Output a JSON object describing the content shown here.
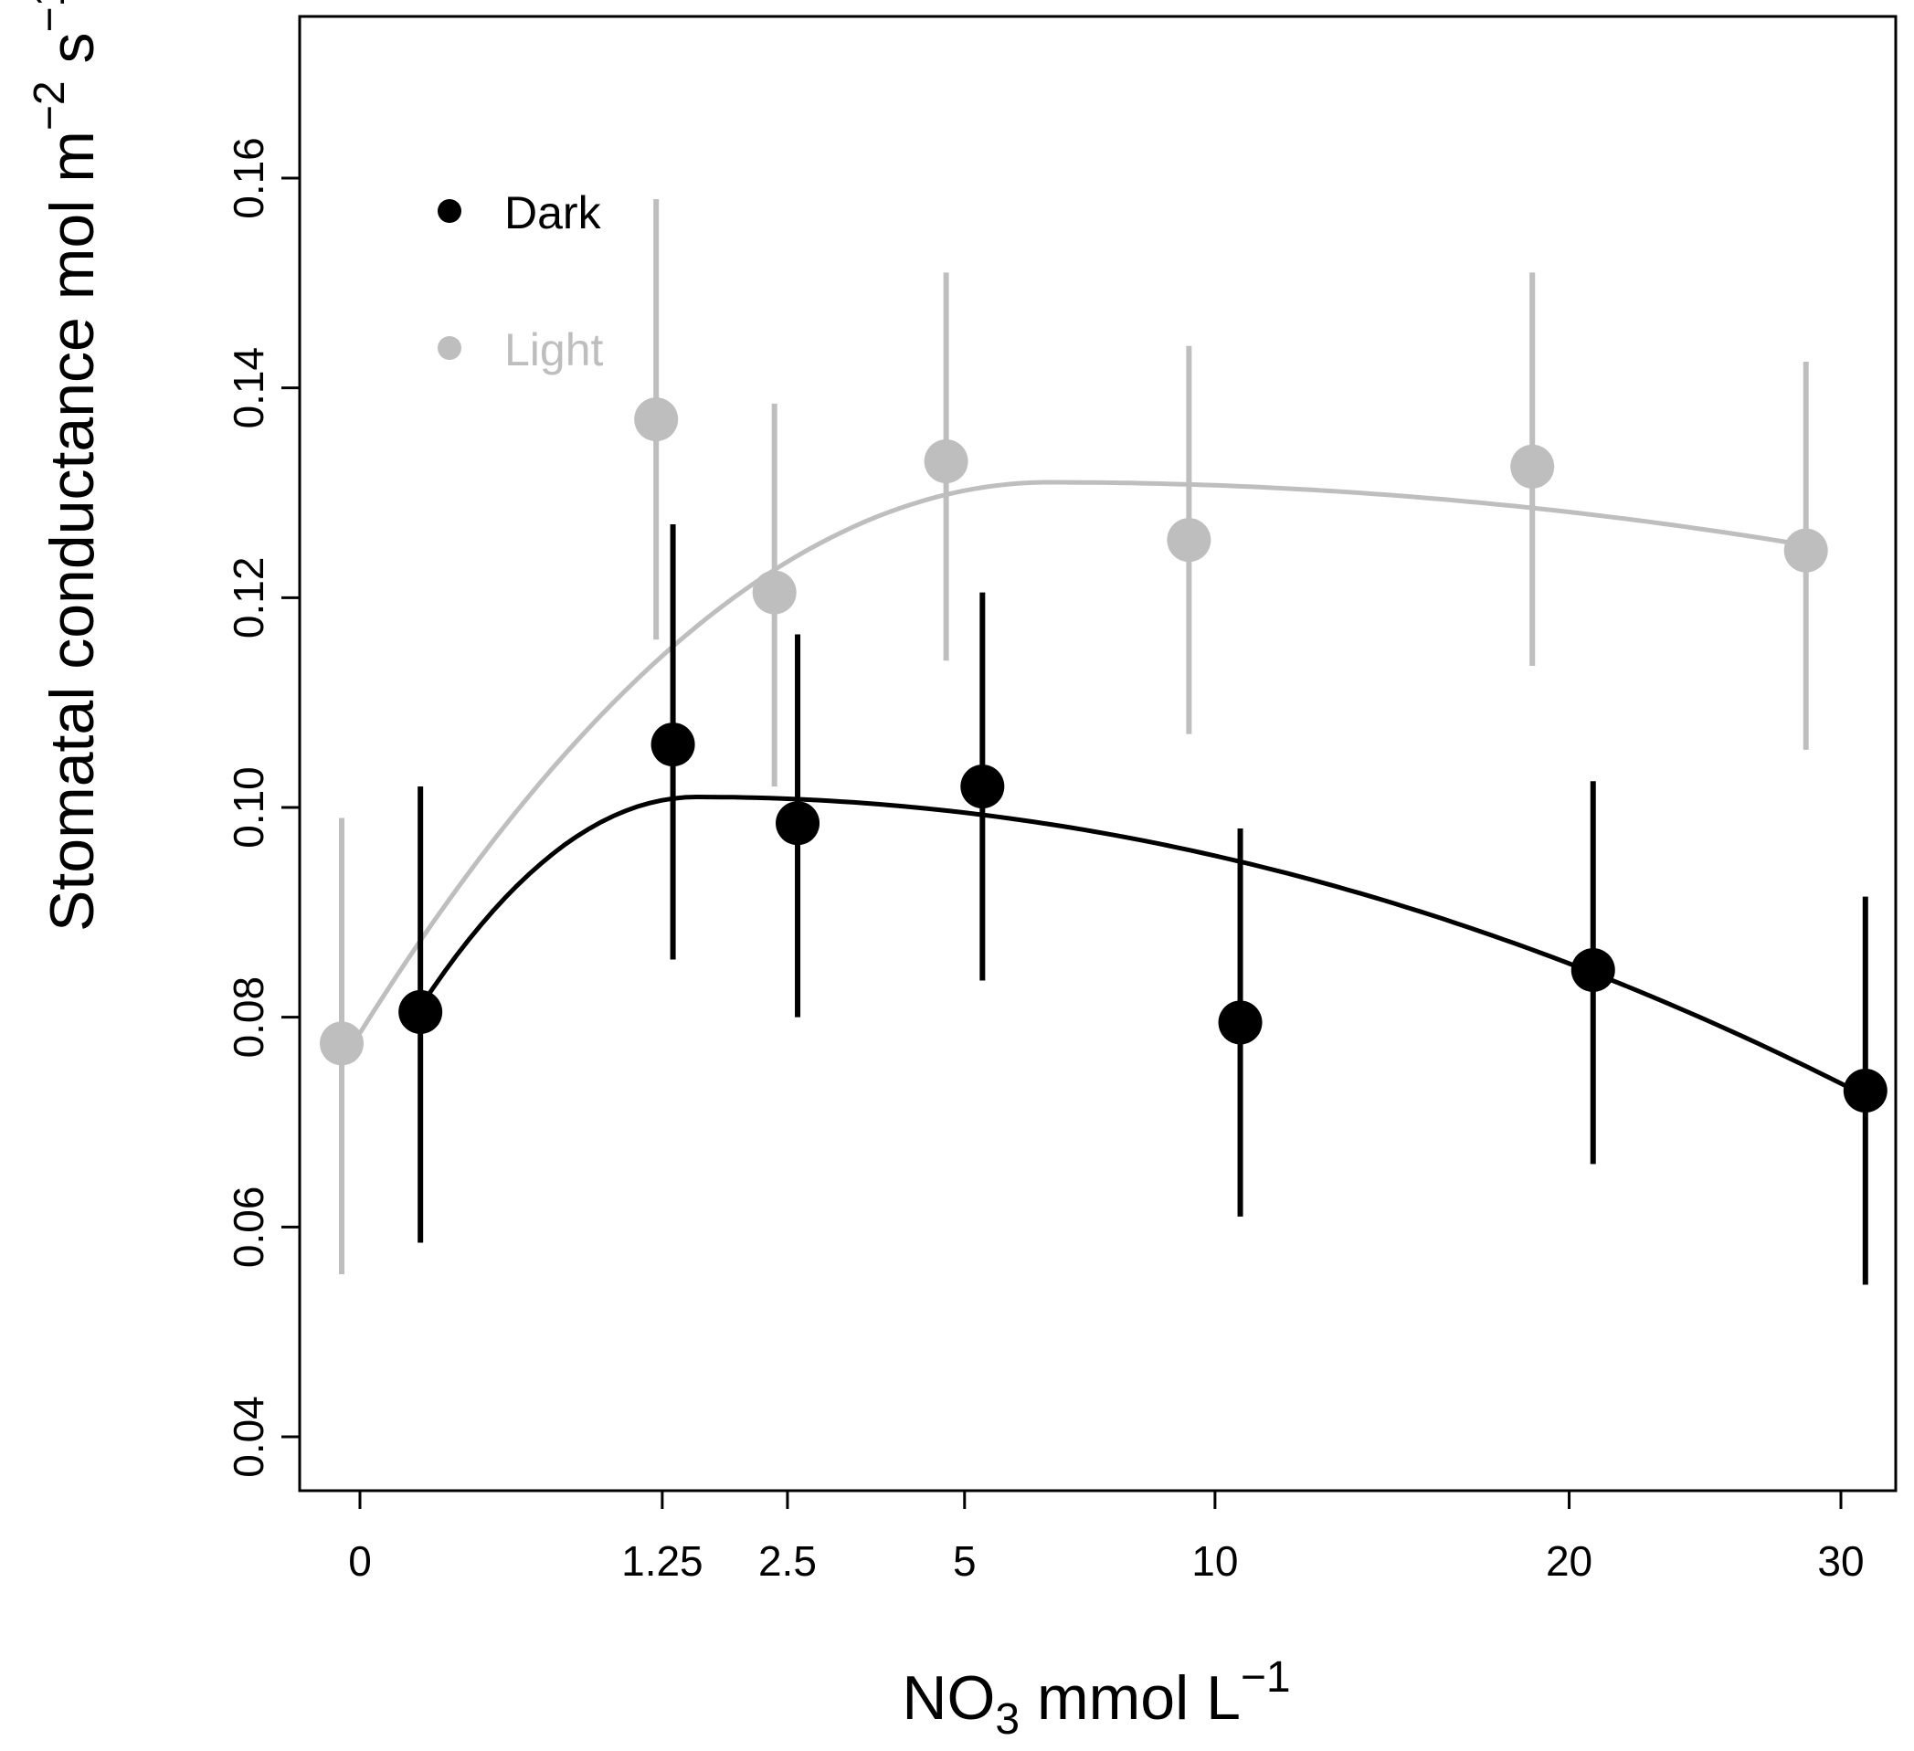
{
  "chart_data": {
    "type": "scatter",
    "title": "",
    "xlabel": {
      "main": "NO",
      "subscript": "3",
      "unit": " mmol L",
      "superscript": "−1"
    },
    "ylabel": {
      "main": "Stomatal conductance mol m",
      "sup1": "−2",
      "mid": " s",
      "sup2": "−1"
    },
    "x_categories": [
      "0",
      "1.25",
      "2.5",
      "5",
      "10",
      "20",
      "30"
    ],
    "ylim": [
      0.035,
      0.175
    ],
    "y_ticks": [
      0.04,
      0.06,
      0.08,
      0.1,
      0.12,
      0.14,
      0.16
    ],
    "y_tick_labels": [
      "0.04",
      "0.06",
      "0.08",
      "0.10",
      "0.12",
      "0.14",
      "0.16"
    ],
    "legend": {
      "placement": "top-left",
      "entries": [
        {
          "label": "Dark",
          "color": "#000000"
        },
        {
          "label": "Light",
          "color": "#bebebe"
        }
      ]
    },
    "series": [
      {
        "name": "Dark",
        "color": "#000000",
        "x": [
          0.05,
          1.34,
          2.62,
          5.3,
          10.6,
          20.8,
          31.0
        ],
        "y": [
          0.0805,
          0.106,
          0.0985,
          0.102,
          0.0795,
          0.0845,
          0.073
        ],
        "err_low": [
          0.0585,
          0.0855,
          0.08,
          0.0835,
          0.061,
          0.066,
          0.0545
        ],
        "err_high": [
          0.102,
          0.127,
          0.1165,
          0.1205,
          0.098,
          0.1025,
          0.0915
        ],
        "fit": {
          "x_start": 0.05,
          "x_end": 31.0,
          "y_start": 0.081,
          "y_peak": 0.101,
          "x_peak": 1.55,
          "y_end": 0.0725
        }
      },
      {
        "name": "Light",
        "color": "#bebebe",
        "x": [
          -0.05,
          1.2,
          2.35,
          4.7,
          9.4,
          18.8,
          28.6
        ],
        "y": [
          0.0775,
          0.137,
          0.1205,
          0.133,
          0.1255,
          0.1325,
          0.1245
        ],
        "err_low": [
          0.0555,
          0.116,
          0.102,
          0.114,
          0.107,
          0.1135,
          0.1055
        ],
        "err_high": [
          0.099,
          0.158,
          0.1385,
          0.151,
          0.144,
          0.151,
          0.1425
        ],
        "fit": {
          "x_start": -0.05,
          "x_end": 28.6,
          "y_start": 0.0785,
          "y_peak": 0.131,
          "x_peak": 6.5,
          "y_end": 0.125
        }
      }
    ]
  }
}
